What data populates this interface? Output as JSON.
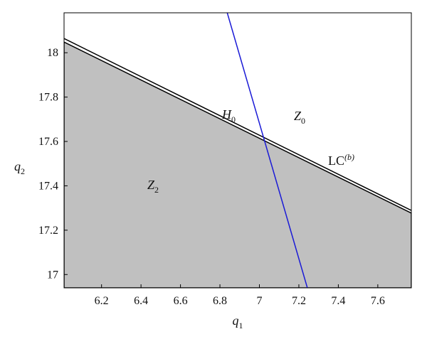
{
  "chart_data": {
    "type": "line",
    "xlabel": {
      "text": "q",
      "sub": "1"
    },
    "ylabel": {
      "text": "q",
      "sub": "2"
    },
    "xlim": [
      6.01,
      7.77
    ],
    "ylim": [
      16.94,
      18.18
    ],
    "xticks": [
      6.2,
      6.4,
      6.6,
      6.8,
      {
        "value": 7.0,
        "label": "7"
      },
      7.2,
      7.4,
      7.6
    ],
    "yticks": [
      17,
      17.2,
      17.4,
      17.6,
      17.8,
      18
    ],
    "series": [
      {
        "color": "#c0c0c0",
        "fill": true,
        "x": [
          6.01,
          7.77
        ],
        "values": [
          18.048,
          17.277
        ]
      },
      {
        "color": "#000000",
        "x": [
          6.01,
          7.77
        ],
        "values": [
          18.064,
          17.289
        ]
      },
      {
        "color": "#1a1ad6",
        "x": [
          6.837,
          7.243
        ],
        "values": [
          18.18,
          16.94
        ]
      }
    ],
    "annotations": [
      {
        "text": "H",
        "sub": "0"
      },
      {
        "text": "Z",
        "sub": "0"
      },
      {
        "text": "LC",
        "sup": "(b)"
      },
      {
        "text": "Z",
        "sub": "2"
      }
    ]
  }
}
